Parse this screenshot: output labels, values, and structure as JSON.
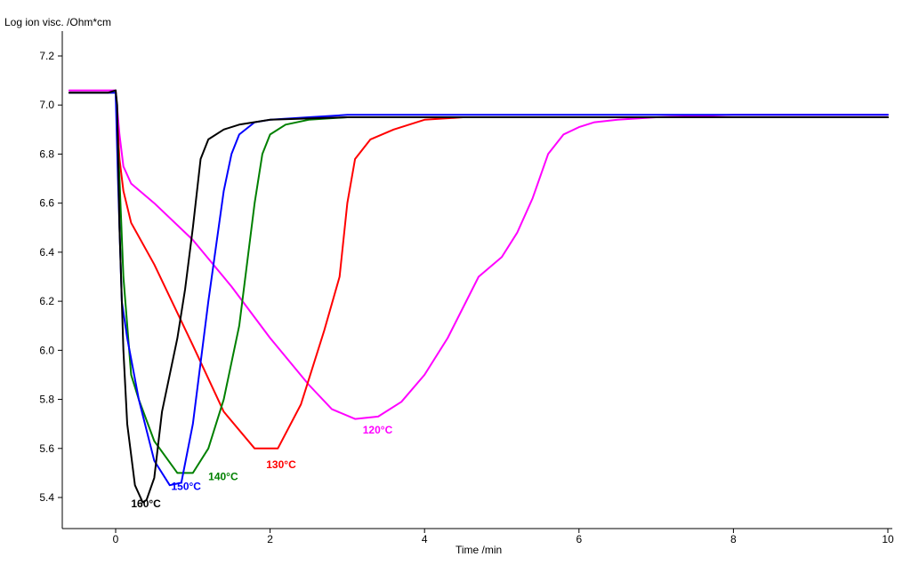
{
  "chart_data": {
    "type": "line",
    "title": "",
    "xlabel": "Time /min",
    "ylabel": "Log ion visc. /Ohm*cm",
    "xlim": [
      -0.65,
      10
    ],
    "ylim": [
      5.32,
      7.28
    ],
    "xticks": [
      0,
      2,
      4,
      6,
      8,
      10
    ],
    "yticks": [
      5.4,
      5.6,
      5.8,
      6.0,
      6.2,
      6.4,
      6.6,
      6.8,
      7.0,
      7.2
    ],
    "ytick_labels": [
      "5.4",
      "5.6",
      "5.8",
      "6.0",
      "6.2",
      "6.4",
      "6.6",
      "6.8",
      "7.0",
      "7.2"
    ],
    "grid": false,
    "legend": "none",
    "series": [
      {
        "name": "120°C",
        "color": "#ff00ff",
        "label_at": [
          3.2,
          5.66
        ],
        "x": [
          -0.6,
          0,
          0.05,
          0.1,
          0.2,
          0.5,
          1.0,
          1.5,
          2.0,
          2.5,
          2.8,
          3.1,
          3.4,
          3.7,
          4.0,
          4.3,
          4.7,
          5.0,
          5.2,
          5.4,
          5.6,
          5.8,
          6.0,
          6.2,
          6.5,
          7.0,
          8.0,
          9.0,
          10.0
        ],
        "y": [
          7.06,
          7.06,
          6.88,
          6.75,
          6.68,
          6.6,
          6.45,
          6.26,
          6.05,
          5.86,
          5.76,
          5.72,
          5.73,
          5.79,
          5.9,
          6.05,
          6.3,
          6.38,
          6.48,
          6.62,
          6.8,
          6.88,
          6.91,
          6.93,
          6.94,
          6.95,
          6.96,
          6.96,
          6.96
        ]
      },
      {
        "name": "130°C",
        "color": "#ff0000",
        "label_at": [
          1.95,
          5.52
        ],
        "x": [
          -0.6,
          0,
          0.05,
          0.1,
          0.2,
          0.5,
          1.0,
          1.4,
          1.8,
          2.1,
          2.4,
          2.7,
          2.9,
          3.0,
          3.1,
          3.3,
          3.6,
          4.0,
          4.5,
          5.0,
          6.0,
          7.0,
          8.0,
          10.0
        ],
        "y": [
          7.05,
          7.05,
          6.78,
          6.65,
          6.52,
          6.35,
          6.02,
          5.75,
          5.6,
          5.6,
          5.78,
          6.08,
          6.3,
          6.6,
          6.78,
          6.86,
          6.9,
          6.94,
          6.95,
          6.95,
          6.95,
          6.95,
          6.95,
          6.95
        ]
      },
      {
        "name": "140°C",
        "color": "#008000",
        "label_at": [
          1.2,
          5.47
        ],
        "x": [
          -0.6,
          0,
          0.05,
          0.1,
          0.2,
          0.3,
          0.5,
          0.8,
          1.0,
          1.2,
          1.4,
          1.6,
          1.8,
          1.9,
          2.0,
          2.2,
          2.5,
          3.0,
          4.0,
          6.0,
          8.0,
          10.0
        ],
        "y": [
          7.05,
          7.05,
          6.7,
          6.3,
          5.9,
          5.8,
          5.63,
          5.5,
          5.5,
          5.6,
          5.8,
          6.1,
          6.6,
          6.8,
          6.88,
          6.92,
          6.94,
          6.95,
          6.95,
          6.95,
          6.95,
          6.95
        ]
      },
      {
        "name": "150°C",
        "color": "#0000ff",
        "label_at": [
          0.72,
          5.43
        ],
        "x": [
          -0.6,
          0,
          0.03,
          0.08,
          0.15,
          0.3,
          0.5,
          0.7,
          0.85,
          1.0,
          1.2,
          1.4,
          1.5,
          1.6,
          1.8,
          2.0,
          2.5,
          3.0,
          4.0,
          6.0,
          8.0,
          10.0
        ],
        "y": [
          7.05,
          7.05,
          6.7,
          6.2,
          6.05,
          5.8,
          5.55,
          5.45,
          5.46,
          5.7,
          6.2,
          6.65,
          6.8,
          6.88,
          6.93,
          6.94,
          6.95,
          6.96,
          6.96,
          6.96,
          6.96,
          6.96
        ]
      },
      {
        "name": "160°C",
        "color": "#000000",
        "label_at": [
          0.2,
          5.36
        ],
        "x": [
          -0.6,
          -0.1,
          0,
          0.02,
          0.05,
          0.1,
          0.15,
          0.25,
          0.35,
          0.4,
          0.5,
          0.6,
          0.8,
          0.9,
          1.0,
          1.1,
          1.2,
          1.4,
          1.6,
          2.0,
          3.0,
          4.0,
          6.0,
          8.0,
          10.0
        ],
        "y": [
          7.05,
          7.05,
          7.06,
          7.0,
          6.5,
          6.0,
          5.7,
          5.45,
          5.38,
          5.39,
          5.48,
          5.75,
          6.05,
          6.25,
          6.5,
          6.78,
          6.86,
          6.9,
          6.92,
          6.94,
          6.95,
          6.95,
          6.95,
          6.95,
          6.95
        ]
      }
    ]
  }
}
